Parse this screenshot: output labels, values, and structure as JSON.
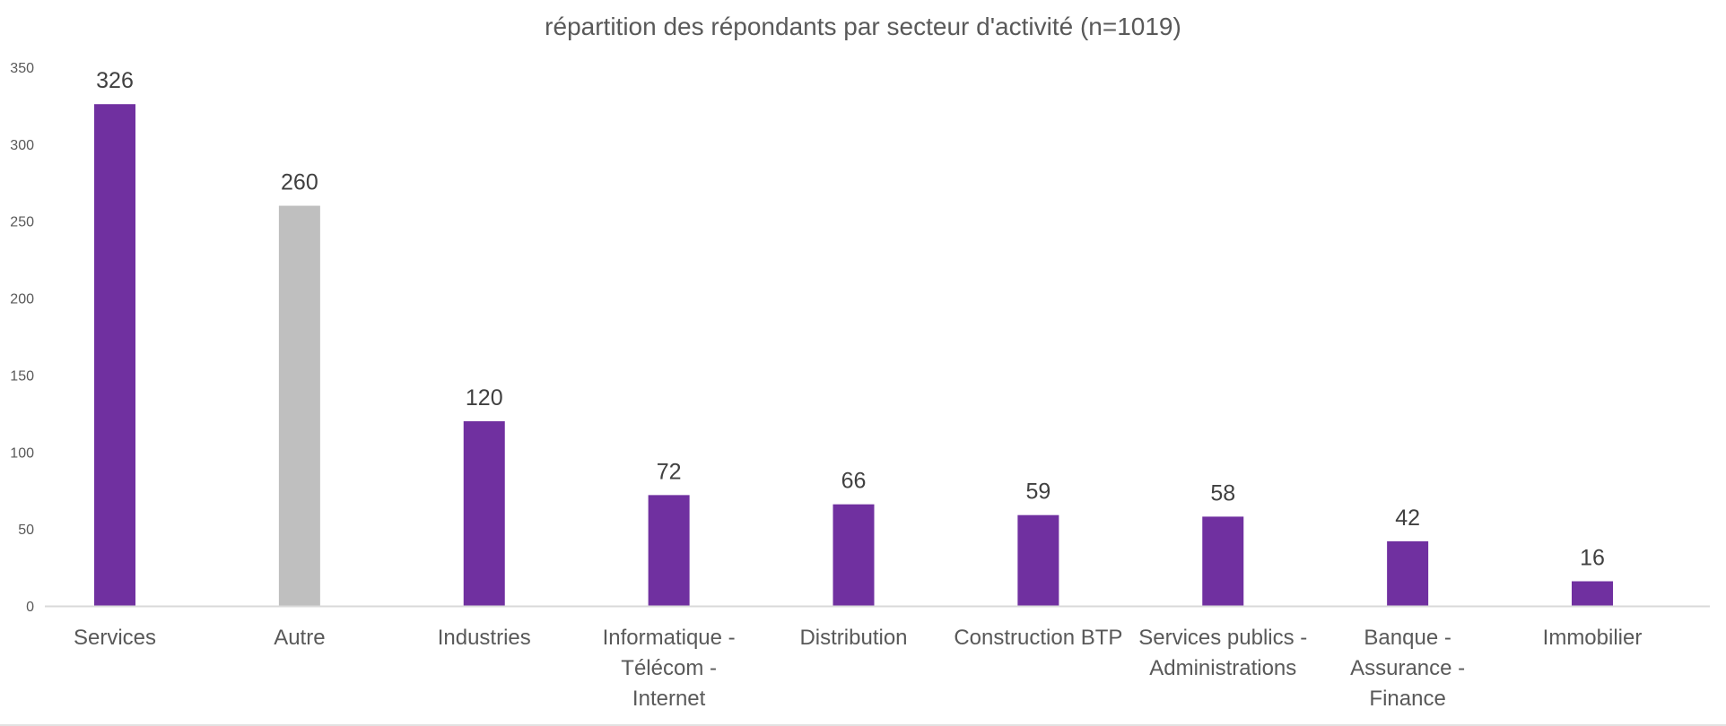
{
  "chart_data": {
    "type": "bar",
    "title": "répartition des répondants par secteur d'activité (n=1019)",
    "xlabel": "",
    "ylabel": "",
    "categories": [
      "Services",
      "Autre",
      "Industries",
      "Informatique - Télécom - Internet",
      "Distribution",
      "Construction BTP",
      "Services publics - Administrations",
      "Banque - Assurance - Finance",
      "Immobilier"
    ],
    "category_lines": [
      [
        "Services"
      ],
      [
        "Autre"
      ],
      [
        "Industries"
      ],
      [
        "Informatique -",
        "Télécom -",
        "Internet"
      ],
      [
        "Distribution"
      ],
      [
        "Construction BTP"
      ],
      [
        "Services publics -",
        "Administrations"
      ],
      [
        "Banque -",
        "Assurance -",
        "Finance"
      ],
      [
        "Immobilier"
      ]
    ],
    "values": [
      326,
      260,
      120,
      72,
      66,
      59,
      58,
      42,
      16
    ],
    "data_labels": [
      "326",
      "260",
      "120",
      "72",
      "66",
      "59",
      "58",
      "42",
      "16"
    ],
    "ylim": [
      0,
      350
    ],
    "yticks": [
      0,
      50,
      100,
      150,
      200,
      250,
      300,
      350
    ],
    "grid": false,
    "legend": "none",
    "colors": {
      "default_bar": "#7030a0",
      "highlight_bar": "#bfbfbf",
      "title": "#595959",
      "ticks": "#595959",
      "data_labels": "#404040",
      "axis": "#d9d9d9"
    },
    "bar_colors": [
      "#7030a0",
      "#bfbfbf",
      "#7030a0",
      "#7030a0",
      "#7030a0",
      "#7030a0",
      "#7030a0",
      "#7030a0",
      "#7030a0"
    ]
  }
}
